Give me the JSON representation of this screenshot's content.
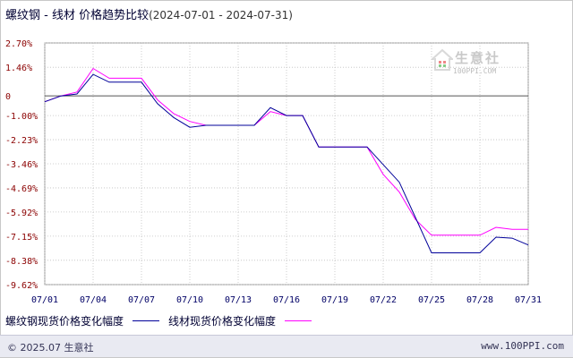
{
  "title": {
    "main": "螺纹钢 - 线材 价格趋势比较",
    "range": "(2024-07-01 - 2024-07-31)"
  },
  "watermark": {
    "text": "生意社",
    "url": "100PPI.COM"
  },
  "footer": {
    "left": "© 2025.07 生意社",
    "right": "www.100PPI.com"
  },
  "colors": {
    "series1": "#000099",
    "series2": "#ff00ff",
    "grid": "#c0c0c0",
    "zero": "#555555"
  },
  "chart_data": {
    "type": "line",
    "ylim": [
      -9.62,
      2.7
    ],
    "yticks": [
      "2.70%",
      "1.46%",
      "0",
      "-1.00%",
      "-2.23%",
      "-3.46%",
      "-4.69%",
      "-5.92%",
      "-7.15%",
      "-8.38%",
      "-9.62%"
    ],
    "ytick_values": [
      2.7,
      1.46,
      0,
      -1.0,
      -2.23,
      -3.46,
      -4.69,
      -5.92,
      -7.15,
      -8.38,
      -9.62
    ],
    "x": [
      "07/01",
      "07/02",
      "07/03",
      "07/04",
      "07/05",
      "07/06",
      "07/07",
      "07/08",
      "07/09",
      "07/10",
      "07/11",
      "07/12",
      "07/13",
      "07/14",
      "07/15",
      "07/16",
      "07/17",
      "07/18",
      "07/19",
      "07/20",
      "07/21",
      "07/22",
      "07/23",
      "07/24",
      "07/25",
      "07/26",
      "07/27",
      "07/28",
      "07/29",
      "07/30",
      "07/31"
    ],
    "xticks": [
      "07/01",
      "07/04",
      "07/07",
      "07/10",
      "07/13",
      "07/16",
      "07/19",
      "07/22",
      "07/25",
      "07/28",
      "07/31"
    ],
    "series": [
      {
        "name": "螺纹钢现货价格变化幅度",
        "color": "#000099",
        "values": [
          -0.3,
          0,
          0.1,
          1.1,
          0.7,
          0.7,
          0.7,
          -0.4,
          -1.1,
          -1.6,
          -1.5,
          -1.5,
          -1.5,
          -1.5,
          -0.6,
          -1.0,
          -1.0,
          -2.6,
          -2.6,
          -2.6,
          -2.6,
          -3.5,
          -4.4,
          -6.2,
          -8.0,
          -8.0,
          -8.0,
          -8.0,
          -7.2,
          -7.25,
          -7.6
        ]
      },
      {
        "name": "线材现货价格变化幅度",
        "color": "#ff00ff",
        "values": [
          -0.3,
          0,
          0.2,
          1.4,
          0.9,
          0.9,
          0.9,
          -0.2,
          -0.9,
          -1.3,
          -1.5,
          -1.5,
          -1.5,
          -1.5,
          -0.8,
          -1.0,
          -1.0,
          -2.6,
          -2.6,
          -2.6,
          -2.6,
          -4.0,
          -4.9,
          -6.3,
          -7.1,
          -7.1,
          -7.1,
          -7.1,
          -6.7,
          -6.8,
          -6.8
        ]
      }
    ],
    "grid": true,
    "legend_placement": "bottom-left"
  }
}
